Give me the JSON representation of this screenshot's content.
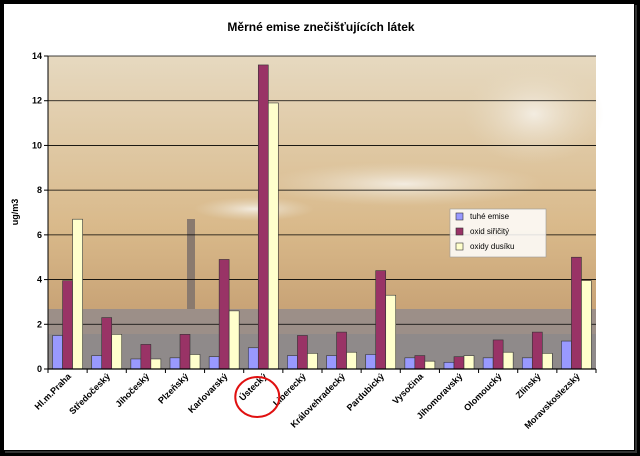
{
  "chart_data": {
    "type": "bar",
    "title": "Měrné emise znečišťujících látek",
    "xlabel": "",
    "ylabel": "ug/m3",
    "ylim": [
      0,
      14
    ],
    "yticks": [
      0,
      2,
      4,
      6,
      8,
      10,
      12,
      14
    ],
    "grid": true,
    "legend_position": "right",
    "highlighted_category": "Ústecký",
    "categories": [
      "Hl.m.Praha",
      "Středočeský",
      "Jihočeský",
      "Plzeňský",
      "Karlovarský",
      "Ústecký",
      "Liberecký",
      "Královehradecký",
      "Pardubický",
      "Vysočina",
      "Jihomoravský",
      "Olomoucký",
      "Zlínský",
      "Moravskoslezský"
    ],
    "series": [
      {
        "name": "tuhé emise",
        "color": "#9999ff",
        "values": [
          1.5,
          0.6,
          0.45,
          0.5,
          0.55,
          0.95,
          0.6,
          0.6,
          0.65,
          0.5,
          0.3,
          0.5,
          0.5,
          1.25
        ]
      },
      {
        "name": "oxid siřičitý",
        "color": "#993366",
        "values": [
          3.95,
          2.3,
          1.1,
          1.55,
          4.9,
          13.6,
          1.5,
          1.65,
          4.4,
          0.6,
          0.55,
          1.3,
          1.65,
          5.0
        ]
      },
      {
        "name": "oxidy dusíku",
        "color": "#ffffcc",
        "values": [
          6.7,
          1.55,
          0.45,
          0.65,
          2.6,
          11.9,
          0.7,
          0.75,
          3.3,
          0.35,
          0.6,
          0.75,
          0.7,
          3.95
        ]
      }
    ]
  }
}
